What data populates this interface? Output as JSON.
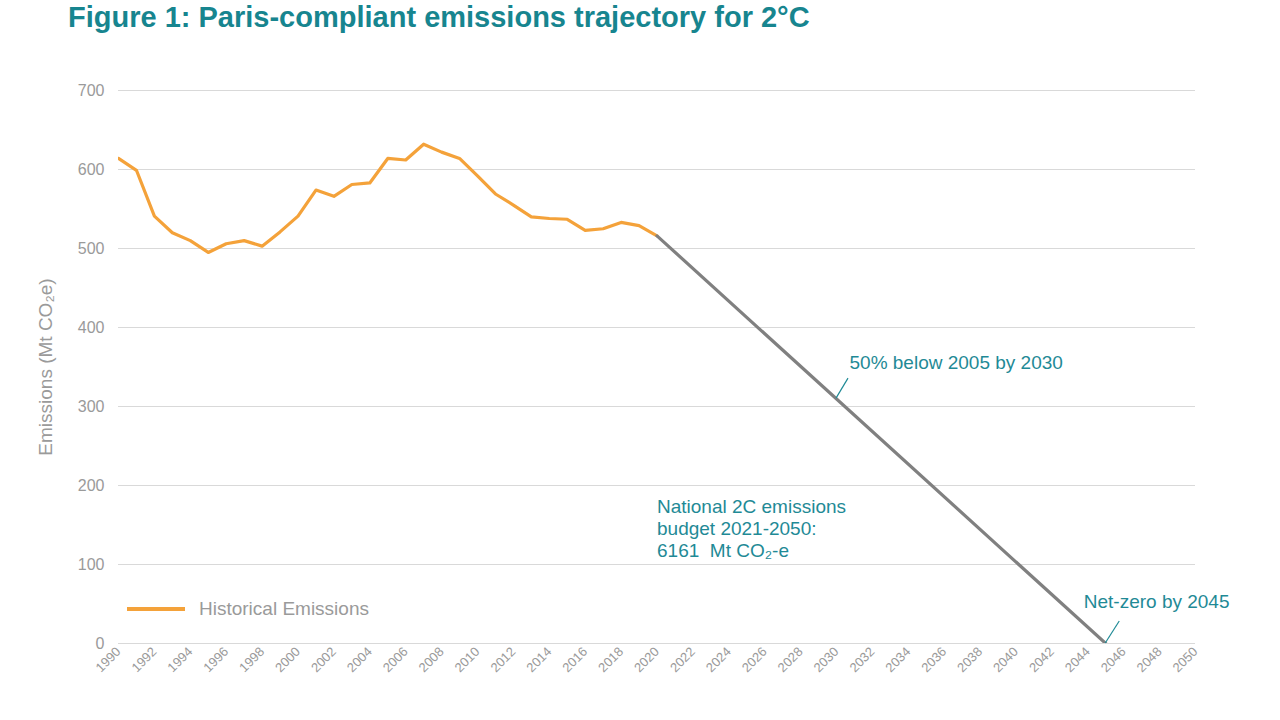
{
  "chart_data": {
    "type": "line",
    "title": "Figure 1: Paris-compliant emissions trajectory for 2°C",
    "y_label": "Emissions (Mt CO₂e)",
    "xlim": [
      1990,
      2050
    ],
    "xticks": [
      1990,
      1992,
      1994,
      1996,
      1998,
      2000,
      2002,
      2004,
      2006,
      2008,
      2010,
      2012,
      2014,
      2016,
      2018,
      2020,
      2022,
      2024,
      2026,
      2028,
      2030,
      2032,
      2034,
      2036,
      2038,
      2040,
      2042,
      2044,
      2046,
      2048,
      2050
    ],
    "ylim": [
      0,
      700
    ],
    "yticks": [
      0,
      100,
      200,
      300,
      400,
      500,
      600,
      700
    ],
    "grid": true,
    "legend": "lower left",
    "series": [
      {
        "name": "Historical Emissions",
        "color": "#f4a23a",
        "x": [
          1990,
          1991,
          1992,
          1993,
          1994,
          1995,
          1996,
          1997,
          1998,
          1999,
          2000,
          2001,
          2002,
          2003,
          2004,
          2005,
          2006,
          2007,
          2008,
          2009,
          2010,
          2011,
          2012,
          2013,
          2014,
          2015,
          2016,
          2017,
          2018,
          2019,
          2020
        ],
        "values": [
          614,
          599,
          541,
          520,
          510,
          495,
          506,
          510,
          503,
          521,
          541,
          574,
          566,
          581,
          583,
          614,
          612,
          632,
          622,
          614,
          592,
          569,
          555,
          540,
          538,
          537,
          523,
          525,
          533,
          529,
          516
        ]
      },
      {
        "color": "#808080",
        "x": [
          2020,
          2045
        ],
        "values": [
          516,
          0
        ]
      }
    ],
    "callouts": [
      {
        "text": "50% below 2005 by 2030",
        "x": 2030,
        "y": 310
      },
      {
        "text": "Net-zero by 2045",
        "x": 2045,
        "y": 0
      }
    ],
    "notes": [
      {
        "text": "National 2C emissions\nbudget 2021-2050:\n6161  Mt CO₂-e",
        "x": 2020,
        "y": 185
      }
    ]
  }
}
